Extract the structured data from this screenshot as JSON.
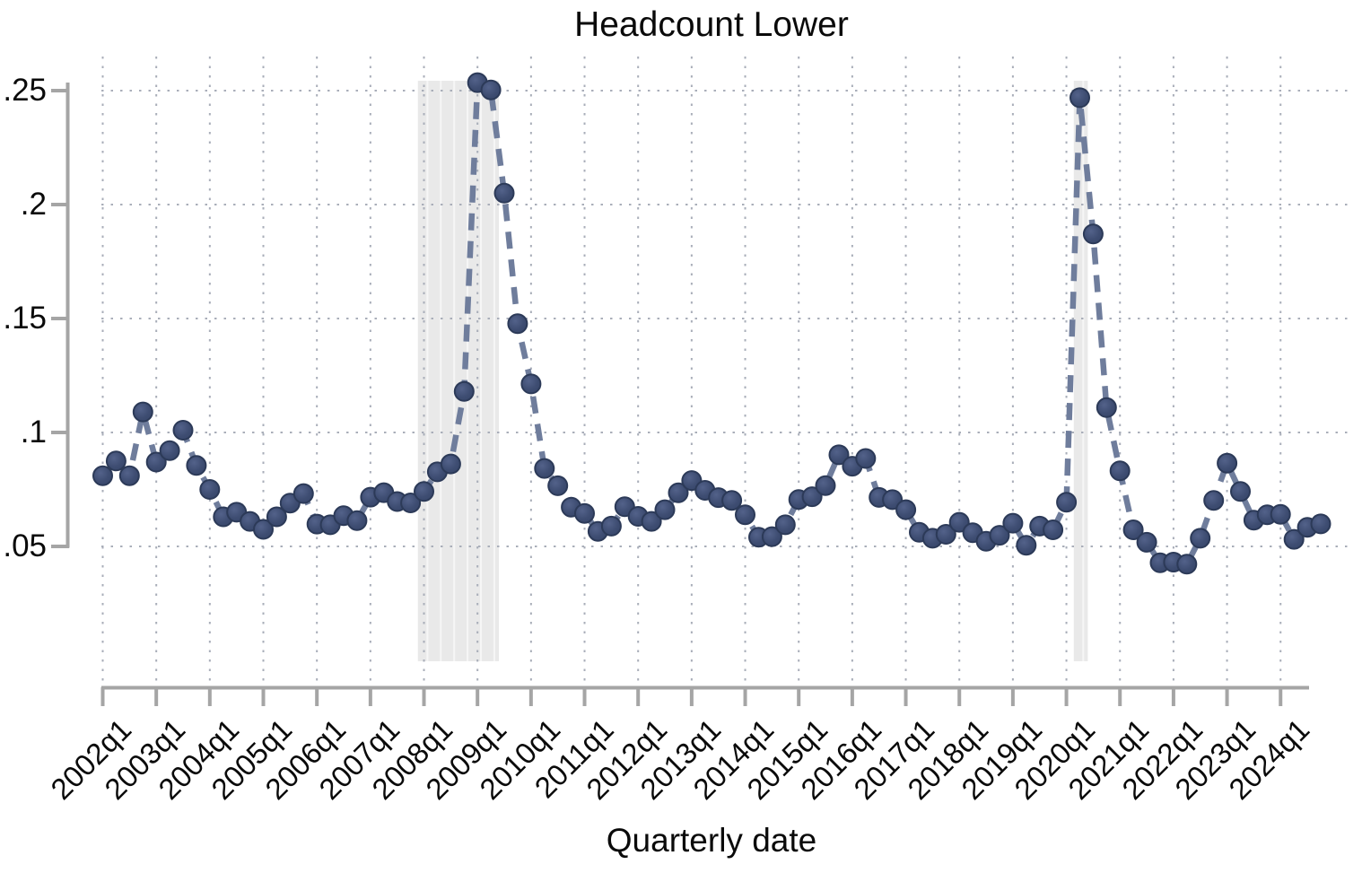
{
  "title": "Headcount Lower",
  "axes": {
    "x_label": "Quarterly date",
    "y_tick_labels": [
      ".05",
      ".1",
      ".15",
      ".2",
      ".25"
    ],
    "y_tick_values": [
      0.05,
      0.1,
      0.15,
      0.2,
      0.25
    ],
    "x_tick_labels": [
      "2002q1",
      "2003q1",
      "2004q1",
      "2005q1",
      "2006q1",
      "2007q1",
      "2008q1",
      "2009q1",
      "2010q1",
      "2011q1",
      "2012q1",
      "2013q1",
      "2014q1",
      "2015q1",
      "2016q1",
      "2017q1",
      "2018q1",
      "2019q1",
      "2020q1",
      "2021q1",
      "2022q1",
      "2023q1",
      "2024q1"
    ]
  },
  "chart_data": {
    "type": "line",
    "title": "Headcount Lower",
    "xlabel": "Quarterly date",
    "ylabel": "",
    "line_style": "dashed",
    "marker": "circle",
    "legend": "none",
    "grid": true,
    "ylim": [
      0,
      0.265
    ],
    "y_ticks": [
      0.05,
      0.1,
      0.15,
      0.2,
      0.25
    ],
    "x": [
      "2002q1",
      "2002q2",
      "2002q3",
      "2002q4",
      "2003q1",
      "2003q2",
      "2003q3",
      "2003q4",
      "2004q1",
      "2004q2",
      "2004q3",
      "2004q4",
      "2005q1",
      "2005q2",
      "2005q3",
      "2005q4",
      "2006q1",
      "2006q2",
      "2006q3",
      "2006q4",
      "2007q1",
      "2007q2",
      "2007q3",
      "2007q4",
      "2008q1",
      "2008q2",
      "2008q3",
      "2008q4",
      "2009q1",
      "2009q2",
      "2009q3",
      "2009q4",
      "2010q1",
      "2010q2",
      "2010q3",
      "2010q4",
      "2011q1",
      "2011q2",
      "2011q3",
      "2011q4",
      "2012q1",
      "2012q2",
      "2012q3",
      "2012q4",
      "2013q1",
      "2013q2",
      "2013q3",
      "2013q4",
      "2014q1",
      "2014q2",
      "2014q3",
      "2014q4",
      "2015q1",
      "2015q2",
      "2015q3",
      "2015q4",
      "2016q1",
      "2016q2",
      "2016q3",
      "2016q4",
      "2017q1",
      "2017q2",
      "2017q3",
      "2017q4",
      "2018q1",
      "2018q2",
      "2018q3",
      "2018q4",
      "2019q1",
      "2019q2",
      "2019q3",
      "2019q4",
      "2020q1",
      "2020q2",
      "2020q3",
      "2020q4",
      "2021q1",
      "2021q2",
      "2021q3",
      "2021q4",
      "2022q1",
      "2022q2",
      "2022q3",
      "2022q4",
      "2023q1",
      "2023q2",
      "2023q3",
      "2023q4",
      "2024q1",
      "2024q2",
      "2024q3",
      "2024q4"
    ],
    "values": [
      0.081,
      0.0875,
      0.081,
      0.109,
      0.087,
      0.092,
      0.101,
      0.0855,
      0.075,
      0.063,
      0.065,
      0.061,
      0.0575,
      0.063,
      0.069,
      0.0732,
      0.0598,
      0.0595,
      0.0635,
      0.0613,
      0.0716,
      0.0736,
      0.0697,
      0.0691,
      0.0741,
      0.0827,
      0.0862,
      0.118,
      0.2535,
      0.2503,
      0.205,
      0.1477,
      0.1213,
      0.0842,
      0.0766,
      0.0672,
      0.0645,
      0.0566,
      0.0589,
      0.0674,
      0.0632,
      0.061,
      0.0661,
      0.0735,
      0.0789,
      0.0746,
      0.0714,
      0.0702,
      0.0639,
      0.054,
      0.0543,
      0.0595,
      0.0706,
      0.0718,
      0.0767,
      0.0902,
      0.0852,
      0.0886,
      0.0715,
      0.0705,
      0.0661,
      0.0562,
      0.0536,
      0.0553,
      0.0606,
      0.056,
      0.0523,
      0.0549,
      0.0602,
      0.0505,
      0.0589,
      0.0573,
      0.0694,
      0.2469,
      0.1871,
      0.1109,
      0.0832,
      0.0573,
      0.0518,
      0.0428,
      0.0431,
      0.0422,
      0.0536,
      0.0702,
      0.0865,
      0.0741,
      0.0615,
      0.0639,
      0.0641,
      0.0531,
      0.0584,
      0.0599
    ],
    "shaded_regions": [
      {
        "label": "recession-band",
        "from": "2008q1",
        "to": "2009q2"
      },
      {
        "label": "recession-band",
        "from": "2020q2",
        "to": "2020q2"
      }
    ],
    "colors": {
      "line": "#6f7d9c",
      "marker_fill": "#3e4d72",
      "marker_edge": "#2c3a58",
      "grid": "#a9aeb9",
      "axis": "#a5a5a5",
      "band": "#e9e9e9",
      "band_stripe": "#f6f6f6",
      "text": "#0a0a0a"
    }
  }
}
